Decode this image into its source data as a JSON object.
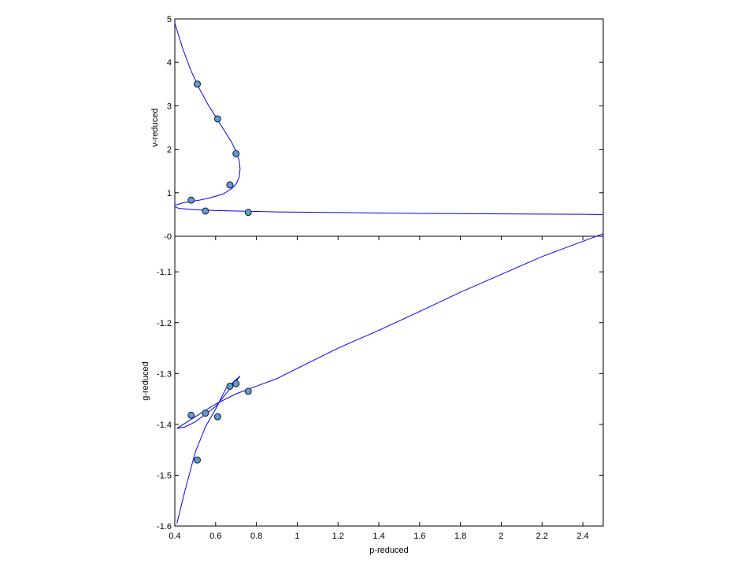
{
  "chart_data": [
    {
      "id": "top",
      "type": "line",
      "xlabel": "",
      "ylabel": "v-reduced",
      "xlim": [
        0.4,
        2.5
      ],
      "ylim": [
        0,
        5
      ],
      "x_ticks": [],
      "y_ticks": [
        {
          "value": 0,
          "label": "-0"
        },
        {
          "value": 1,
          "label": "1"
        },
        {
          "value": 2,
          "label": "2"
        },
        {
          "value": 3,
          "label": "3"
        },
        {
          "value": 4,
          "label": "4"
        },
        {
          "value": 5,
          "label": "5"
        }
      ],
      "grid": false,
      "series": [
        {
          "style": "line",
          "color": "#0000ff",
          "x": [
            0.4,
            0.44,
            0.48,
            0.52,
            0.56,
            0.6,
            0.64,
            0.68,
            0.7,
            0.715,
            0.72,
            0.715,
            0.7,
            0.68,
            0.64,
            0.6,
            0.56,
            0.52,
            0.48,
            0.44,
            0.42,
            0.4,
            0.4,
            0.42,
            0.45,
            0.5,
            0.55,
            0.6,
            0.7,
            0.8,
            0.9,
            1.0,
            1.2,
            1.4,
            1.6,
            1.8,
            2.0,
            2.2,
            2.4,
            2.5
          ],
          "y": [
            4.9,
            4.3,
            3.8,
            3.4,
            3.05,
            2.75,
            2.45,
            2.15,
            1.95,
            1.75,
            1.55,
            1.35,
            1.2,
            1.1,
            0.98,
            0.92,
            0.87,
            0.83,
            0.8,
            0.77,
            0.74,
            0.71,
            0.68,
            0.64,
            0.63,
            0.61,
            0.6,
            0.59,
            0.58,
            0.57,
            0.56,
            0.555,
            0.545,
            0.535,
            0.525,
            0.52,
            0.515,
            0.51,
            0.505,
            0.5
          ]
        },
        {
          "style": "markers",
          "color": "#5b9bd5",
          "x": [
            0.51,
            0.61,
            0.7,
            0.67,
            0.48,
            0.55,
            0.76
          ],
          "y": [
            3.5,
            2.7,
            1.9,
            1.18,
            0.83,
            0.58,
            0.55
          ]
        }
      ]
    },
    {
      "id": "bottom",
      "type": "line",
      "xlabel": "p-reduced",
      "ylabel": "g-reduced",
      "xlim": [
        0.4,
        2.5
      ],
      "ylim": [
        -1.6,
        -1.03
      ],
      "x_ticks": [
        {
          "value": 0.4,
          "label": "0.4"
        },
        {
          "value": 0.6,
          "label": "0.6"
        },
        {
          "value": 0.8,
          "label": "0.8"
        },
        {
          "value": 1.0,
          "label": "1"
        },
        {
          "value": 1.2,
          "label": "1.2"
        },
        {
          "value": 1.4,
          "label": "1.4"
        },
        {
          "value": 1.6,
          "label": "1.6"
        },
        {
          "value": 1.8,
          "label": "1.8"
        },
        {
          "value": 2.0,
          "label": "2"
        },
        {
          "value": 2.2,
          "label": "2.2"
        },
        {
          "value": 2.4,
          "label": "2.4"
        }
      ],
      "y_ticks": [
        {
          "value": -1.1,
          "label": "-1.1"
        },
        {
          "value": -1.2,
          "label": "-1.2"
        },
        {
          "value": -1.3,
          "label": "-1.3"
        },
        {
          "value": -1.4,
          "label": "-1.4"
        },
        {
          "value": -1.5,
          "label": "-1.5"
        },
        {
          "value": -1.6,
          "label": "-1.6"
        }
      ],
      "grid": false,
      "series": [
        {
          "style": "line",
          "color": "#0000ff",
          "x": [
            0.41,
            0.45,
            0.5,
            0.55,
            0.6,
            0.65,
            0.72,
            0.65,
            0.6,
            0.55,
            0.5,
            0.45,
            0.41,
            0.5,
            0.6,
            0.7,
            0.8,
            0.9,
            1.0,
            1.2,
            1.4,
            1.6,
            1.8,
            2.0,
            2.2,
            2.4,
            2.5
          ],
          "y": [
            -1.595,
            -1.53,
            -1.455,
            -1.405,
            -1.37,
            -1.33,
            -1.305,
            -1.34,
            -1.365,
            -1.38,
            -1.395,
            -1.405,
            -1.408,
            -1.385,
            -1.36,
            -1.34,
            -1.325,
            -1.31,
            -1.29,
            -1.25,
            -1.215,
            -1.178,
            -1.14,
            -1.105,
            -1.07,
            -1.04,
            -1.025
          ]
        },
        {
          "style": "markers",
          "color": "#5b9bd5",
          "x": [
            0.51,
            0.61,
            0.7,
            0.67,
            0.48,
            0.55,
            0.76
          ],
          "y": [
            -1.47,
            -1.385,
            -1.32,
            -1.325,
            -1.382,
            -1.378,
            -1.335
          ]
        }
      ]
    }
  ]
}
